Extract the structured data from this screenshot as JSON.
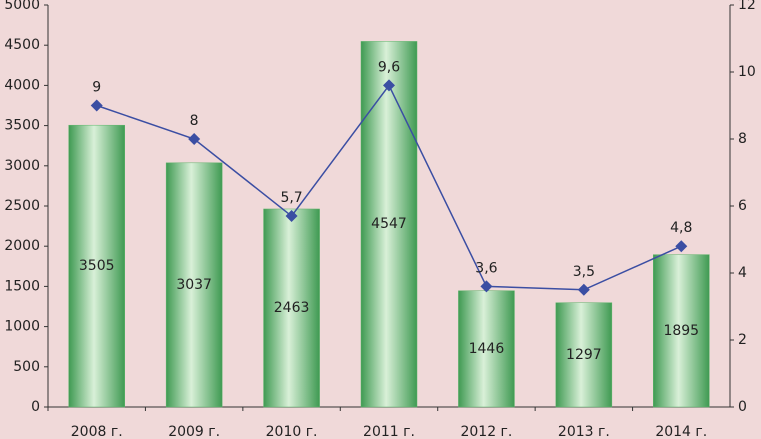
{
  "chart_data": {
    "type": "bar",
    "categories": [
      "2008 г.",
      "2009 г.",
      "2010 г.",
      "2011 г.",
      "2012 г.",
      "2013 г.",
      "2014 г."
    ],
    "series": [
      {
        "type": "bar",
        "color": "#5db46a",
        "values": [
          3505,
          3037,
          2463,
          4547,
          1446,
          1297,
          1895
        ]
      },
      {
        "type": "line",
        "axis": "y2",
        "color": "#3b4ea3",
        "values": [
          9,
          8,
          5.7,
          9.6,
          3.6,
          3.5,
          4.8
        ],
        "value_labels": [
          "9",
          "8",
          "5,7",
          "9,6",
          "3,6",
          "3,5",
          "4,8"
        ]
      }
    ],
    "ylim": [
      0,
      5000
    ],
    "yticks": [
      0,
      500,
      1000,
      1500,
      2000,
      2500,
      3000,
      3500,
      4000,
      4500,
      5000
    ],
    "y2lim": [
      0,
      12
    ],
    "y2ticks": [
      0,
      2,
      4,
      6,
      8,
      10,
      12
    ],
    "grid": false
  }
}
